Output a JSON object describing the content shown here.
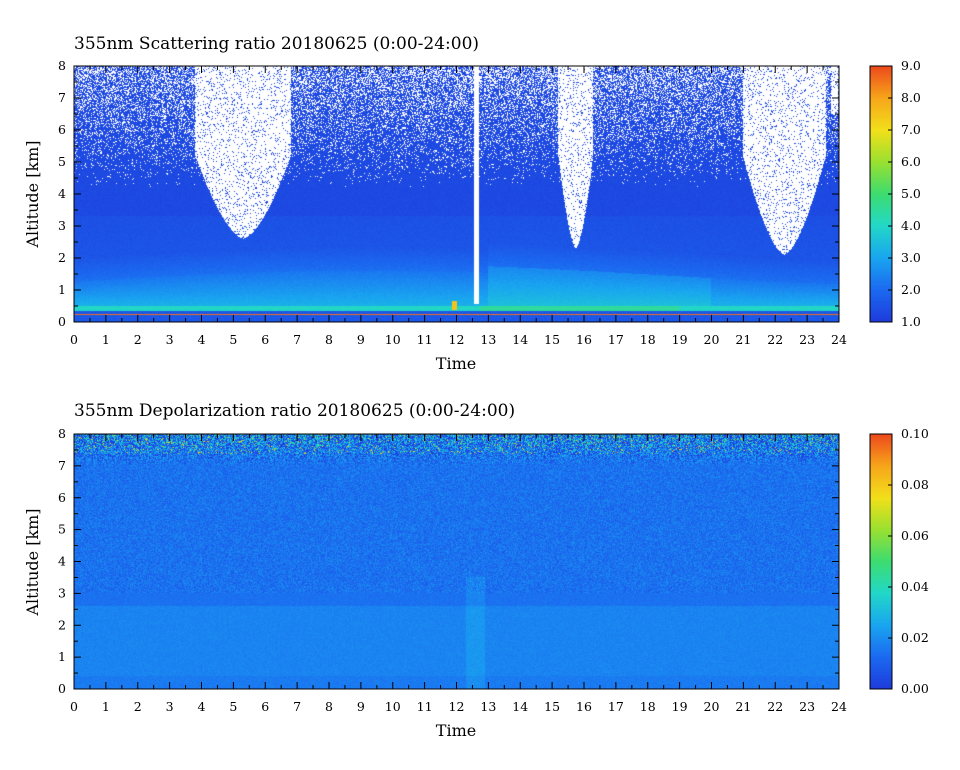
{
  "chart_data": [
    {
      "type": "heatmap",
      "title": "355nm Scattering ratio  20180625 (0:00-24:00)",
      "xlabel": "Time",
      "ylabel": "Altitude [km]",
      "xlim": [
        0,
        24
      ],
      "ylim": [
        0,
        8
      ],
      "x_ticks": [
        "0",
        "1",
        "2",
        "3",
        "4",
        "5",
        "6",
        "7",
        "8",
        "9",
        "10",
        "11",
        "12",
        "13",
        "14",
        "15",
        "16",
        "17",
        "18",
        "19",
        "20",
        "21",
        "22",
        "23",
        "24"
      ],
      "y_ticks": [
        "0",
        "1",
        "2",
        "3",
        "4",
        "5",
        "6",
        "7",
        "8"
      ],
      "colorbar": {
        "range": [
          1.0,
          9.0
        ],
        "ticks": [
          "1.0",
          "2.0",
          "3.0",
          "4.0",
          "5.0",
          "6.0",
          "7.0",
          "8.0",
          "9.0"
        ],
        "colors": [
          "#1e3cdc",
          "#1b6af0",
          "#19a6f0",
          "#22d8c8",
          "#3ddc70",
          "#9ae030",
          "#f2e01a",
          "#f7a61a",
          "#ee4a1c"
        ]
      },
      "features": {
        "background_level": 1.3,
        "boundary_layer": {
          "top_km": [
            0.45,
            1.6
          ],
          "peak_level": 4.2
        },
        "surface_line_km": 0.22,
        "clear_sky_regions": [
          {
            "time": [
              3.8,
              6.8
            ],
            "min_altitude_km": 2.6
          },
          {
            "time": [
              15.2,
              16.3
            ],
            "min_altitude_km": 2.3
          },
          {
            "time": [
              21.0,
              23.6
            ],
            "min_altitude_km": 2.1
          }
        ],
        "data_gap": {
          "time": [
            12.55,
            12.7
          ]
        },
        "spike": {
          "time": 11.95,
          "altitude_km": 0.5,
          "level": 7.5
        }
      }
    },
    {
      "type": "heatmap",
      "title": "355nm Depolarization ratio  20180625 (0:00-24:00)",
      "xlabel": "Time",
      "ylabel": "Altitude [km]",
      "xlim": [
        0,
        24
      ],
      "ylim": [
        0,
        8
      ],
      "x_ticks": [
        "0",
        "1",
        "2",
        "3",
        "4",
        "5",
        "6",
        "7",
        "8",
        "9",
        "10",
        "11",
        "12",
        "13",
        "14",
        "15",
        "16",
        "17",
        "18",
        "19",
        "20",
        "21",
        "22",
        "23",
        "24"
      ],
      "y_ticks": [
        "0",
        "1",
        "2",
        "3",
        "4",
        "5",
        "6",
        "7",
        "8"
      ],
      "colorbar": {
        "range": [
          0.0,
          0.1
        ],
        "ticks": [
          "0.00",
          "0.02",
          "0.04",
          "0.06",
          "0.08",
          "0.10"
        ],
        "colors": [
          "#1e3cdc",
          "#1b6af0",
          "#19a6f0",
          "#22d8c8",
          "#3ddc70",
          "#9ae030",
          "#f2e01a",
          "#f7a61a",
          "#ee4a1c"
        ]
      },
      "features": {
        "background_level": 0.014,
        "upper_noise_altitude_km": 7.0,
        "upper_noise_peak": 0.085,
        "boundary_layer_level": 0.018
      }
    }
  ]
}
